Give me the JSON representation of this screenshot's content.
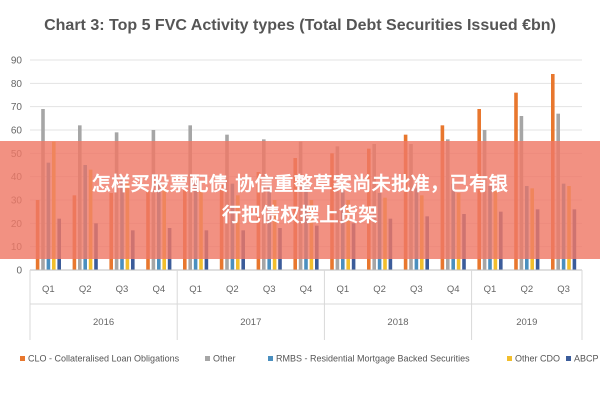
{
  "chart_data": {
    "type": "bar",
    "title": "Chart 3: Top 5 FVC Activity types (Total Debt Securities Issued €bn)",
    "xlabel": "",
    "ylabel": "",
    "ylim": [
      0,
      90
    ],
    "yticks": [
      "0",
      "10",
      "20",
      "30",
      "40",
      "50",
      "60",
      "70",
      "80",
      "90"
    ],
    "grid": true,
    "legend_position": "bottom",
    "categories": [
      "Q1",
      "Q2",
      "Q3",
      "Q4",
      "Q1",
      "Q2",
      "Q3",
      "Q4",
      "Q1",
      "Q2",
      "Q3",
      "Q4",
      "Q1",
      "Q2",
      "Q3"
    ],
    "years": [
      {
        "label": "2016",
        "count": 4
      },
      {
        "label": "2017",
        "count": 4
      },
      {
        "label": "2018",
        "count": 4
      },
      {
        "label": "2019",
        "count": 3
      }
    ],
    "series": [
      {
        "name": "CLO - Collateralised Loan Obligations",
        "color": "#E8772E",
        "values": [
          30,
          32,
          33,
          34,
          35,
          37,
          42,
          48,
          50,
          52,
          58,
          62,
          69,
          76,
          84
        ]
      },
      {
        "name": "Other",
        "color": "#A6A6A6",
        "values": [
          69,
          62,
          59,
          60,
          62,
          58,
          56,
          55,
          53,
          54,
          54,
          56,
          60,
          66,
          67
        ]
      },
      {
        "name": "RMBS - Residential Mortgage Backed Securities",
        "color": "#4A8FBF",
        "values": [
          46,
          45,
          40,
          38,
          38,
          37,
          36,
          37,
          34,
          33,
          35,
          37,
          36,
          36,
          37
        ]
      },
      {
        "name": "Other CDO",
        "color": "#F2BE2C",
        "values": [
          55,
          43,
          38,
          36,
          34,
          32,
          30,
          30,
          30,
          31,
          32,
          33,
          34,
          35,
          36
        ]
      },
      {
        "name": "ABCP",
        "color": "#3B5C9A",
        "values": [
          22,
          20,
          17,
          18,
          17,
          17,
          18,
          19,
          20,
          22,
          23,
          24,
          25,
          26,
          26
        ]
      }
    ]
  },
  "overlay": {
    "line1": "怎样买股票配债 协信重整草案尚未批准，已有银",
    "line2": "行把债权摆上货架"
  }
}
